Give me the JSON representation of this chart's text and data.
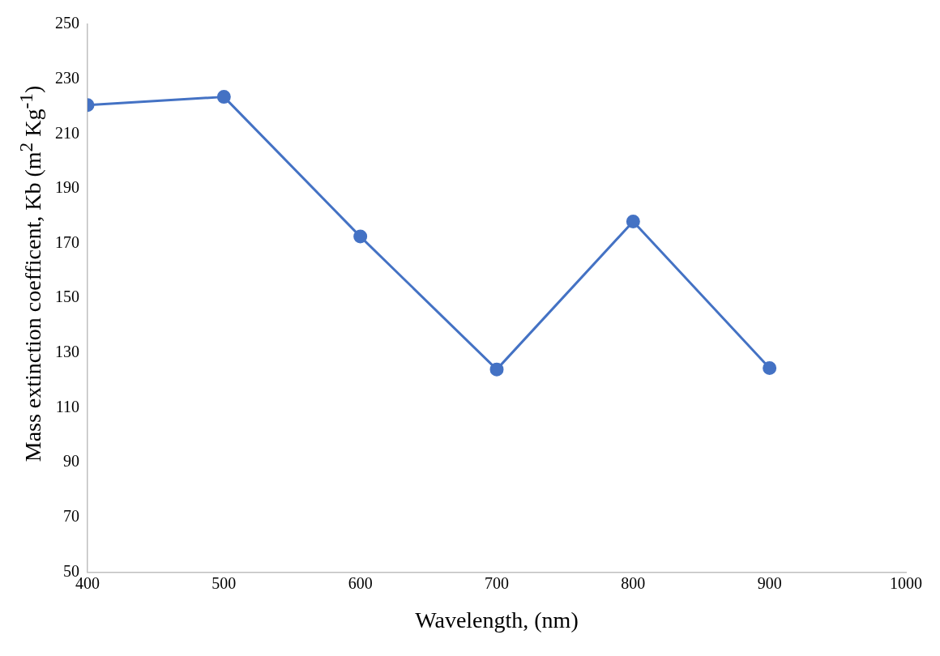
{
  "chart_data": {
    "type": "line",
    "xlabel": "Wavelength, (nm)",
    "ylabel": "Mass extinction coefficent, Kb (m$^{2}$ Kg$^{-1}$)",
    "x": [
      400,
      500,
      600,
      700,
      800,
      900
    ],
    "series": [
      {
        "color": "#4472c4",
        "values": [
          220.5,
          223.5,
          172.5,
          124,
          178,
          124.5
        ]
      }
    ],
    "xlim": [
      400,
      1000
    ],
    "xticks": [
      400,
      500,
      600,
      700,
      800,
      900,
      1000
    ],
    "ylim": [
      50,
      250
    ],
    "yticks": [
      50,
      70,
      90,
      110,
      130,
      150,
      170,
      190,
      210,
      230,
      250
    ],
    "grid": false,
    "legend": false,
    "marker": "circle",
    "line_style": "solid"
  }
}
